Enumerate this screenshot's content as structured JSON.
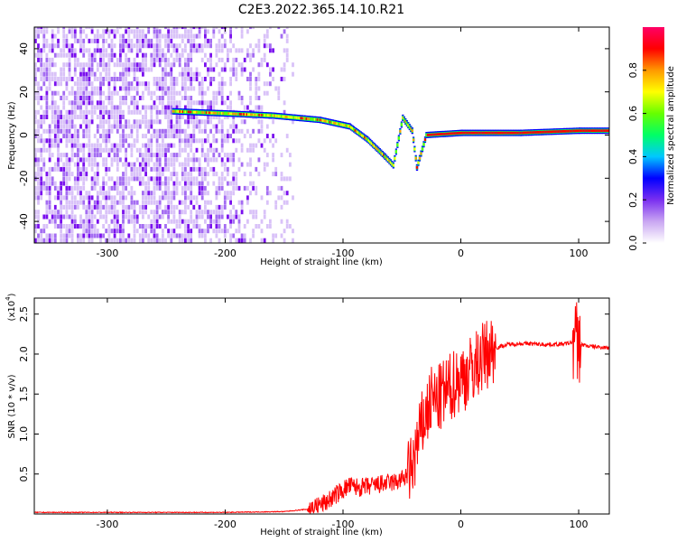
{
  "figure_title": "C2E3.2022.365.14.10.R21",
  "chart_data": [
    {
      "type": "heatmap",
      "title": "C2E3.2022.365.14.10.R21",
      "xlabel": "Height of straight line (km)",
      "ylabel": "Frequency (Hz)",
      "xlim": [
        -362,
        126
      ],
      "ylim": [
        -50,
        50
      ],
      "xticks": [
        -300,
        -200,
        -100,
        0,
        100
      ],
      "yticks": [
        -40,
        -20,
        0,
        20,
        40
      ],
      "colorbar": {
        "label": "Normalized spectral amplitude",
        "range": [
          0,
          1
        ],
        "ticks": [
          "0.0",
          "0.2",
          "0.4",
          "0.6",
          "0.8"
        ],
        "colors": [
          "#ffffff",
          "#c9a6f2",
          "#7a2ff0",
          "#0000ff",
          "#00c8ff",
          "#00ff66",
          "#66ff00",
          "#ffff00",
          "#ff9900",
          "#ff0000",
          "#ff0066"
        ]
      },
      "ridge": {
        "description_points": [
          {
            "x": -245,
            "y": 11
          },
          {
            "x": -200,
            "y": 10
          },
          {
            "x": -160,
            "y": 9
          },
          {
            "x": -120,
            "y": 7
          },
          {
            "x": -95,
            "y": 4
          },
          {
            "x": -80,
            "y": -2
          },
          {
            "x": -65,
            "y": -10
          },
          {
            "x": -58,
            "y": -14
          },
          {
            "x": -50,
            "y": 8
          },
          {
            "x": -42,
            "y": 2
          },
          {
            "x": -38,
            "y": -15
          },
          {
            "x": -30,
            "y": 0
          },
          {
            "x": 0,
            "y": 1
          },
          {
            "x": 50,
            "y": 1
          },
          {
            "x": 100,
            "y": 2
          },
          {
            "x": 126,
            "y": 2
          }
        ]
      },
      "noise_region": {
        "xmin": -362,
        "xmax": -150,
        "ymin": -50,
        "ymax": 50
      }
    },
    {
      "type": "line",
      "xlabel": "Height of straight line (km)",
      "ylabel": "SNR (10 * v/v)",
      "yscale_label": "(x10",
      "yscale_exponent": "4",
      "y_multiplier": 10000,
      "xlim": [
        -362,
        126
      ],
      "ylim": [
        0,
        2.7
      ],
      "xticks": [
        -300,
        -200,
        -100,
        0,
        100
      ],
      "yticks": [
        "0.5",
        "1.0",
        "1.5",
        "2.0",
        "2.5"
      ],
      "series": [
        {
          "color": "#ff0000",
          "x": [
            -362,
            -300,
            -200,
            -150,
            -130,
            -115,
            -105,
            -95,
            -85,
            -75,
            -65,
            -55,
            -48,
            -42,
            -38,
            -32,
            -28,
            -24,
            -20,
            -15,
            -10,
            -5,
            0,
            5,
            10,
            15,
            20,
            25,
            30,
            35,
            40,
            50,
            60,
            70,
            80,
            90,
            95,
            98,
            100,
            103,
            108,
            115,
            126
          ],
          "y": [
            0.02,
            0.02,
            0.02,
            0.03,
            0.06,
            0.14,
            0.25,
            0.35,
            0.33,
            0.35,
            0.38,
            0.4,
            0.45,
            0.55,
            0.8,
            1.15,
            1.3,
            1.45,
            1.4,
            1.5,
            1.55,
            1.65,
            1.7,
            1.75,
            1.82,
            1.9,
            1.98,
            2.04,
            2.08,
            2.1,
            2.12,
            2.13,
            2.13,
            2.12,
            2.12,
            2.13,
            2.15,
            2.2,
            2.1,
            2.12,
            2.1,
            2.09,
            2.08
          ]
        }
      ]
    }
  ]
}
